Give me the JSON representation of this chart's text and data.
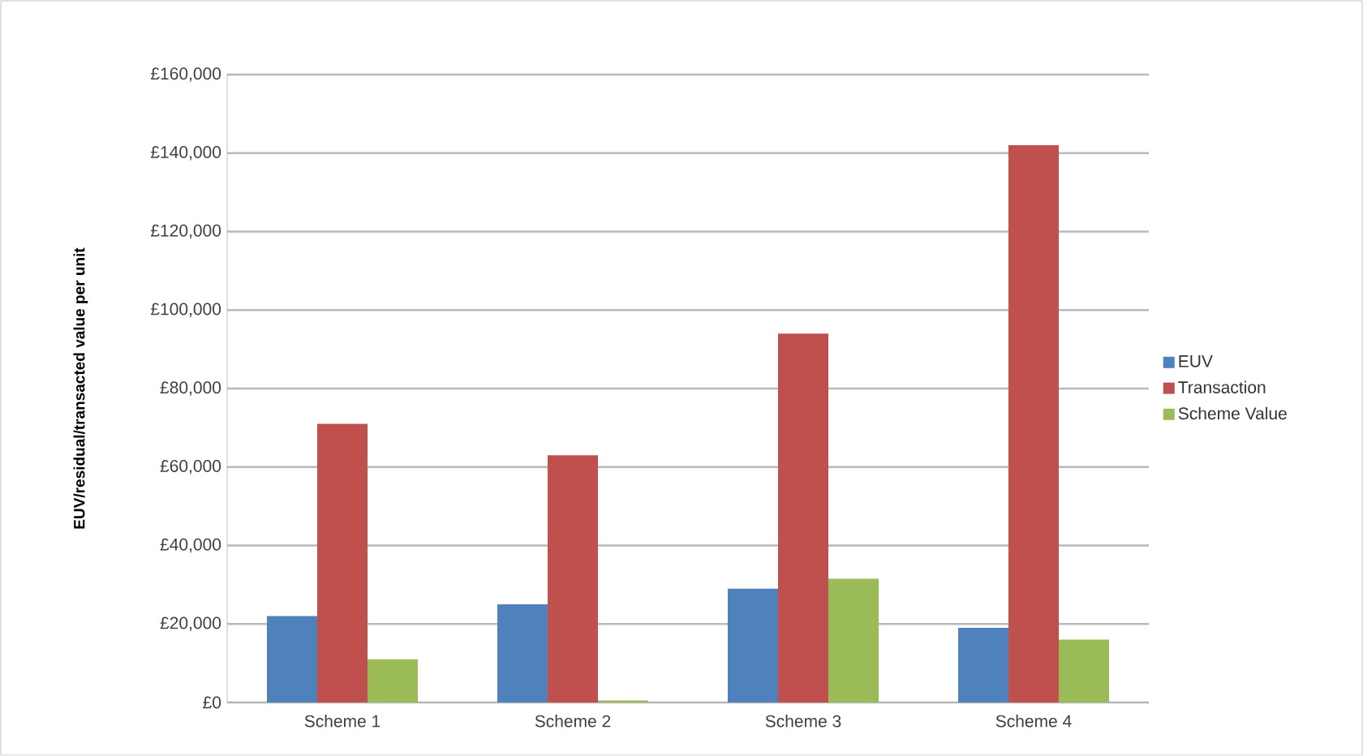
{
  "chart_data": {
    "type": "bar",
    "ylabel": "EUV/residual/transacted value per unit",
    "categories": [
      "Scheme 1",
      "Scheme 2",
      "Scheme 3",
      "Scheme 4"
    ],
    "series": [
      {
        "name": "EUV",
        "color": "#4f81bd",
        "values": [
          22000,
          25000,
          29000,
          19000
        ]
      },
      {
        "name": "Transaction",
        "color": "#c0504d",
        "values": [
          71000,
          63000,
          94000,
          142000
        ]
      },
      {
        "name": "Scheme Value",
        "color": "#9bbb59",
        "values": [
          11000,
          500,
          31500,
          16000
        ]
      }
    ],
    "ylim": [
      0,
      160000
    ],
    "yticks": [
      {
        "value": 0,
        "label": "£0"
      },
      {
        "value": 20000,
        "label": "£20,000"
      },
      {
        "value": 40000,
        "label": "£40,000"
      },
      {
        "value": 60000,
        "label": "£60,000"
      },
      {
        "value": 80000,
        "label": "£80,000"
      },
      {
        "value": 100000,
        "label": "£100,000"
      },
      {
        "value": 120000,
        "label": "£120,000"
      },
      {
        "value": 140000,
        "label": "£140,000"
      },
      {
        "value": 160000,
        "label": "£160,000"
      }
    ],
    "grid": "y",
    "legend": "right"
  }
}
